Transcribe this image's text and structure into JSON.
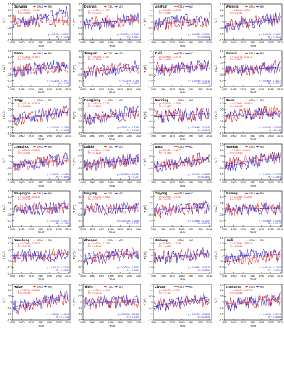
{
  "figure": {
    "legend_labels": [
      "CRU",
      "MO"
    ],
    "colors": {
      "cru": "#e8261e",
      "mo": "#2b2bd8",
      "axis": "#000000"
    },
    "x_ticks": [
      "1950",
      "1960",
      "1970",
      "1980",
      "1990",
      "2000",
      "2010"
    ],
    "y_ticks": [
      "1.5",
      "1.0",
      "0.5",
      "0",
      "-0.5",
      "-1.0",
      "-1.5"
    ],
    "xlabel": "Year",
    "ylabel": "T (C°)"
  },
  "chart_data": [
    {
      "type": "line",
      "station": "Guiyang",
      "eq_cru": "y = 0.0015x + 0.0481",
      "r2_cru": "R² = 0.0025",
      "eq_mo": "y = 0.018x - 0.2227",
      "r2_mo": "R² = 0.1226",
      "xlim": [
        1950,
        2012
      ],
      "ylim": [
        -1.5,
        1.5
      ],
      "series": [
        {
          "name": "CRU",
          "trend": [
            1951,
            0.05,
            2010,
            0.14
          ]
        },
        {
          "name": "MO",
          "trend": [
            1951,
            -0.22,
            2010,
            0.84
          ]
        }
      ]
    },
    {
      "type": "line",
      "station": "Dushan",
      "eq_cru": "y = 0.0044x - 0.1077",
      "r2_cru": "R² = 0.0221",
      "eq_mo": "y = 0.0089x - 0.2516",
      "r2_mo": "R² = 0.0572",
      "xlim": [
        1950,
        2012
      ],
      "ylim": [
        -1.5,
        1.5
      ],
      "series": [
        {
          "name": "CRU",
          "trend": [
            1951,
            -0.1,
            2010,
            0.15
          ]
        },
        {
          "name": "MO",
          "trend": [
            1951,
            -0.24,
            2010,
            0.28
          ]
        }
      ]
    },
    {
      "type": "line",
      "station": "Anshun",
      "eq_cru": "y = 0.0066x - 0.2604",
      "r2_cru": "R² = 0.045",
      "eq_mo": "y = 0.0083x - 0.1651",
      "r2_mo": "R² = 0.0469",
      "xlim": [
        1950,
        2012
      ],
      "ylim": [
        -1.5,
        1.5
      ],
      "series": [
        {
          "name": "CRU",
          "trend": [
            1951,
            -0.25,
            2010,
            0.13
          ]
        },
        {
          "name": "MO",
          "trend": [
            1951,
            -0.16,
            2010,
            0.33
          ]
        }
      ]
    },
    {
      "type": "line",
      "station": "Weining",
      "eq_cru": "y = 0.0084x - 0.263",
      "r2_cru": "R² = 0.1101",
      "eq_mo": "y = 0.0111x - 0.3667",
      "r2_mo": "R² = 0.1572",
      "xlim": [
        1950,
        2012
      ],
      "ylim": [
        -1.5,
        1.5
      ],
      "series": [
        {
          "name": "CRU",
          "trend": [
            1951,
            -0.25,
            2010,
            0.24
          ]
        },
        {
          "name": "MO",
          "trend": [
            1951,
            -0.36,
            2010,
            0.29
          ]
        }
      ]
    },
    {
      "type": "line",
      "station": "Sinan",
      "eq_cru": "y = 0.0062x - 0.1997",
      "r2_cru": "R² = 0.0413",
      "eq_mo": "y = 0.0083x - 0.1997",
      "r2_mo": "R² = 0.08",
      "xlim": [
        1950,
        2012
      ],
      "ylim": [
        -1.5,
        1.5
      ],
      "series": [
        {
          "name": "CRU",
          "trend": [
            1951,
            -0.19,
            2010,
            0.17
          ]
        },
        {
          "name": "MO",
          "trend": [
            1951,
            -0.19,
            2010,
            0.3
          ]
        }
      ]
    },
    {
      "type": "line",
      "station": "Tongren",
      "eq_cru": "y = 0.0059x - 0.262",
      "r2_cru": "R² = 0.1465",
      "eq_mo": "y = 0.0097x - 0.326",
      "r2_mo": "R² = 0.0662",
      "xlim": [
        1950,
        2012
      ],
      "ylim": [
        -1.5,
        1.5
      ],
      "series": [
        {
          "name": "CRU",
          "trend": [
            1951,
            -0.26,
            2010,
            0.09
          ]
        },
        {
          "name": "MO",
          "trend": [
            1951,
            -0.32,
            2010,
            0.25
          ]
        }
      ]
    },
    {
      "type": "line",
      "station": "Kaili",
      "eq_cru": "y = 0.0059x - 0.0379",
      "r2_cru": "R² = 0.0943",
      "eq_mo": "y = 0.0078x - 0.2118",
      "r2_mo": "R² = 0.0447",
      "xlim": [
        1950,
        2012
      ],
      "ylim": [
        -1.5,
        1.5
      ],
      "series": [
        {
          "name": "CRU",
          "trend": [
            1951,
            -0.03,
            2010,
            0.31
          ]
        },
        {
          "name": "MO",
          "trend": [
            1951,
            -0.2,
            2010,
            0.25
          ]
        }
      ]
    },
    {
      "type": "line",
      "station": "Sansui",
      "eq_cru": "y = 0.0047x - 0.1471",
      "r2_cru": "R² = 0.0601",
      "eq_mo": "y = 0.0066x - 0.2657",
      "r2_mo": "R² = 0.0531",
      "xlim": [
        1950,
        2012
      ],
      "ylim": [
        -1.5,
        1.5
      ],
      "series": [
        {
          "name": "CRU",
          "trend": [
            1951,
            -0.14,
            2010,
            0.13
          ]
        },
        {
          "name": "MO",
          "trend": [
            1951,
            -0.26,
            2010,
            0.13
          ]
        }
      ]
    },
    {
      "type": "line",
      "station": "Xingyi",
      "eq_cru": "y = 0.0121x - 0.4318",
      "r2_cru": "R² = 0.1826",
      "eq_mo": "y = 0.0102x - 0.3309",
      "r2_mo": "R² = 0.1658",
      "xlim": [
        1950,
        2012
      ],
      "ylim": [
        -1.5,
        1.5
      ],
      "series": [
        {
          "name": "CRU",
          "trend": [
            1951,
            -0.42,
            2010,
            0.29
          ]
        },
        {
          "name": "MO",
          "trend": [
            1951,
            -0.32,
            2010,
            0.28
          ]
        }
      ]
    },
    {
      "type": "line",
      "station": "Rongjiang",
      "eq_cru": "y = 0.0062x - 0.2742",
      "r2_cru": "R² = 0.1652",
      "eq_mo": "y = 0.0114x - 0.3298",
      "r2_mo": "R² = 0.0915",
      "xlim": [
        1950,
        2012
      ],
      "ylim": [
        -1.5,
        1.5
      ],
      "series": [
        {
          "name": "CRU",
          "trend": [
            1951,
            -0.27,
            2010,
            0.09
          ]
        },
        {
          "name": "MO",
          "trend": [
            1951,
            -0.32,
            2010,
            0.35
          ]
        }
      ]
    },
    {
      "type": "line",
      "station": "Nanning",
      "eq_cru": "y = 0.0029x - 0.0963",
      "r2_cru": "R² = 0.0157",
      "eq_mo": "y = 0.0045x - 0.1048",
      "r2_mo": "R² = 0.0174",
      "xlim": [
        1950,
        2012
      ],
      "ylim": [
        -1.5,
        1.5
      ],
      "series": [
        {
          "name": "CRU",
          "trend": [
            1951,
            -0.09,
            2010,
            0.08
          ]
        },
        {
          "name": "MO",
          "trend": [
            1951,
            -0.1,
            2010,
            0.16
          ]
        }
      ]
    },
    {
      "type": "line",
      "station": "Baise",
      "eq_cru": "y = 0.0066x - 0.0963",
      "r2_cru": "R² = 0.1645",
      "eq_mo": "y = 0.0023x - 0.0009",
      "r2_mo": "R² = 8E-06",
      "xlim": [
        1950,
        2012
      ],
      "ylim": [
        -1.5,
        1.5
      ],
      "series": [
        {
          "name": "CRU",
          "trend": [
            1951,
            -0.09,
            2010,
            0.3
          ]
        },
        {
          "name": "MO",
          "trend": [
            1951,
            0.0,
            2010,
            0.13
          ]
        }
      ]
    },
    {
      "type": "line",
      "station": "Longzhou",
      "eq_cru": "y = 0.0063x - 0.2476",
      "r2_cru": "R² = 0.0261",
      "eq_mo": "y = 0.0115x - 0.3486",
      "r2_mo": "R² = 0.1869",
      "xlim": [
        1950,
        2012
      ],
      "ylim": [
        -1.5,
        1.5
      ],
      "series": [
        {
          "name": "CRU",
          "trend": [
            1951,
            -0.24,
            2010,
            0.13
          ]
        },
        {
          "name": "MO",
          "trend": [
            1951,
            -0.34,
            2010,
            0.33
          ]
        }
      ]
    },
    {
      "type": "line",
      "station": "Laibin",
      "eq_cru": "y = 0.0061x - 0.2058",
      "r2_cru": "R² = 0.1126",
      "eq_mo": "y = 0.0123x - 0.3466",
      "r2_mo": "R² = 0.217",
      "xlim": [
        1950,
        2012
      ],
      "ylim": [
        -1.5,
        1.5
      ],
      "series": [
        {
          "name": "CRU",
          "trend": [
            1951,
            -0.2,
            2010,
            0.16
          ]
        },
        {
          "name": "MO",
          "trend": [
            1951,
            -0.34,
            2010,
            0.38
          ]
        }
      ]
    },
    {
      "type": "line",
      "station": "Napo",
      "eq_cru": "y = 0.0124x - 0.4077",
      "r2_cru": "R² = 0.1883",
      "eq_mo": "y = 0.0137x - 0.4634",
      "r2_mo": "R² = 0.2366",
      "xlim": [
        1950,
        2012
      ],
      "ylim": [
        -1.5,
        1.5
      ],
      "series": [
        {
          "name": "CRU",
          "trend": [
            1951,
            -0.4,
            2010,
            0.33
          ]
        },
        {
          "name": "MO",
          "trend": [
            1951,
            -0.45,
            2010,
            0.35
          ]
        }
      ]
    },
    {
      "type": "line",
      "station": "Rongan",
      "eq_cru": "y = 0.011x - 0.2111",
      "r2_cru": "R² = 0.0913",
      "eq_mo": "y = 0.0133x - 0.3733",
      "r2_mo": "R² = 0.2563",
      "xlim": [
        1950,
        2012
      ],
      "ylim": [
        -1.5,
        1.5
      ],
      "series": [
        {
          "name": "CRU",
          "trend": [
            1951,
            -0.2,
            2010,
            0.44
          ]
        },
        {
          "name": "MO",
          "trend": [
            1951,
            -0.36,
            2010,
            0.41
          ]
        }
      ]
    },
    {
      "type": "line",
      "station": "Shapingba",
      "eq_cru": "y = 0.0024x - 0.0616",
      "r2_cru": "R² = 0.0138",
      "eq_mo": "y = 0.0076x - 0.2407",
      "r2_mo": "R² = 0.1196",
      "xlim": [
        1950,
        2012
      ],
      "ylim": [
        -1.5,
        1.5
      ],
      "series": [
        {
          "name": "CRU",
          "trend": [
            1951,
            -0.06,
            2010,
            0.08
          ]
        },
        {
          "name": "MO",
          "trend": [
            1951,
            -0.23,
            2010,
            0.21
          ]
        }
      ]
    },
    {
      "type": "line",
      "station": "Neijiang",
      "eq_cru": "y = 0.0025x - 0.0815",
      "r2_cru": "R² = 0.0147",
      "eq_mo": "y = 0.0023x - 0.0638",
      "r2_mo": "R² = 0.0103",
      "xlim": [
        1950,
        2012
      ],
      "ylim": [
        -1.5,
        1.5
      ],
      "series": [
        {
          "name": "CRU",
          "trend": [
            1951,
            -0.08,
            2010,
            0.07
          ]
        },
        {
          "name": "MO",
          "trend": [
            1951,
            -0.06,
            2010,
            0.07
          ]
        }
      ]
    },
    {
      "type": "line",
      "station": "Xuyong",
      "eq_cru": "y = 0.0075x - 0.2747",
      "r2_cru": "R² = 0.0215",
      "eq_mo": "y = 0.0045x - 0.1257",
      "r2_mo": "R² = 0.0225",
      "xlim": [
        1950,
        2012
      ],
      "ylim": [
        -1.5,
        1.5
      ],
      "series": [
        {
          "name": "CRU",
          "trend": [
            1951,
            -0.27,
            2010,
            0.17
          ]
        },
        {
          "name": "MO",
          "trend": [
            1951,
            -0.12,
            2010,
            0.14
          ]
        }
      ]
    },
    {
      "type": "line",
      "station": "Suining",
      "eq_cru": "y = 0.0036x - 0.1063",
      "r2_cru": "R² = 0.025",
      "eq_mo": "y = 0.0008x - 0.0208",
      "r2_mo": "R² = 0.0014",
      "xlim": [
        1950,
        2012
      ],
      "ylim": [
        -1.5,
        1.5
      ],
      "series": [
        {
          "name": "CRU",
          "trend": [
            1951,
            -0.1,
            2010,
            0.11
          ]
        },
        {
          "name": "MO",
          "trend": [
            1951,
            -0.02,
            2010,
            0.03
          ]
        }
      ]
    },
    {
      "type": "line",
      "station": "Nanchong",
      "eq_cru": "y = 0.0056x - 0.1652",
      "r2_cru": "R² = 0.0712",
      "eq_mo": "y = 0.0011x - 0.0345",
      "r2_mo": "R² = 0.0022",
      "xlim": [
        1950,
        2012
      ],
      "ylim": [
        -1.5,
        1.5
      ],
      "series": [
        {
          "name": "CRU",
          "trend": [
            1951,
            -0.16,
            2010,
            0.17
          ]
        },
        {
          "name": "MO",
          "trend": [
            1951,
            -0.03,
            2010,
            0.03
          ]
        }
      ]
    },
    {
      "type": "line",
      "station": "Zhaojue",
      "eq_cru": "y = 0.0105x - 0.3256",
      "r2_cru": "R² = 0.1566",
      "eq_mo": "y = 0.0083x - 0.3083",
      "r2_mo": "R² = 0.0687",
      "xlim": [
        1950,
        2012
      ],
      "ylim": [
        -1.5,
        1.5
      ],
      "series": [
        {
          "name": "CRU",
          "trend": [
            1951,
            -0.32,
            2010,
            0.3
          ]
        },
        {
          "name": "MO",
          "trend": [
            1951,
            -0.3,
            2010,
            0.19
          ]
        }
      ]
    },
    {
      "type": "line",
      "station": "Xichang",
      "eq_cru": "y = 0.0069x - 0.2168",
      "r2_cru": "R² = 0.0852",
      "eq_mo": "y = 0.0081x - 0.2978",
      "r2_mo": "R² = 0.0455",
      "xlim": [
        1950,
        2012
      ],
      "ylim": [
        -1.5,
        1.5
      ],
      "series": [
        {
          "name": "CRU",
          "trend": [
            1951,
            -0.21,
            2010,
            0.19
          ]
        },
        {
          "name": "MO",
          "trend": [
            1951,
            -0.29,
            2010,
            0.19
          ]
        }
      ]
    },
    {
      "type": "line",
      "station": "Huili",
      "eq_cru": "y = 0.0108x - 0.5643",
      "r2_cru": "R² = 0.3611",
      "eq_mo": "y = 0.0041x - 0.1264",
      "r2_mo": "R² = 0.0291",
      "xlim": [
        1950,
        2012
      ],
      "ylim": [
        -1.5,
        1.5
      ],
      "series": [
        {
          "name": "CRU",
          "trend": [
            1951,
            -0.55,
            2010,
            0.09
          ]
        },
        {
          "name": "MO",
          "trend": [
            1951,
            -0.12,
            2010,
            0.12
          ]
        }
      ]
    },
    {
      "type": "line",
      "station": "Huize",
      "eq_cru": "y = 0.0173x - 0.6523",
      "r2_cru": "R² = 0.4784",
      "eq_mo": "y = 0.0168x - 0.4604",
      "r2_mo": "R² = 0.2728",
      "xlim": [
        1950,
        2012
      ],
      "ylim": [
        -1.5,
        1.5
      ],
      "series": [
        {
          "name": "CRU",
          "trend": [
            1951,
            -0.63,
            2010,
            0.39
          ]
        },
        {
          "name": "MO",
          "trend": [
            1951,
            -0.44,
            2010,
            0.55
          ]
        }
      ]
    },
    {
      "type": "line",
      "station": "Yibin",
      "eq_cru": "y = 0.0024x - 0.1143",
      "r2_cru": "R² = 0.0143",
      "eq_mo": "y = 0.0054x - 0.1116",
      "r2_mo": "R² = 0.0375",
      "xlim": [
        1950,
        2012
      ],
      "ylim": [
        -1.5,
        1.5
      ],
      "series": [
        {
          "name": "CRU",
          "trend": [
            1951,
            -0.11,
            2010,
            0.03
          ]
        },
        {
          "name": "MO",
          "trend": [
            1951,
            -0.11,
            2010,
            0.21
          ]
        }
      ]
    },
    {
      "type": "line",
      "station": "Ziyang",
      "eq_cru": "y = 0.0079x - 0.276",
      "r2_cru": "R² = 0.1101",
      "eq_mo": "y = 0.0137x - 0.3854",
      "r2_mo": "R² = 0.2398",
      "xlim": [
        1950,
        2012
      ],
      "ylim": [
        -1.5,
        1.5
      ],
      "series": [
        {
          "name": "CRU",
          "trend": [
            1951,
            -0.27,
            2010,
            0.2
          ]
        },
        {
          "name": "MO",
          "trend": [
            1951,
            -0.38,
            2010,
            0.43
          ]
        }
      ]
    },
    {
      "type": "line",
      "station": "Zhaotong",
      "eq_cru": "y = 0.0066x - 0.1774",
      "r2_cru": "R² = 0.0546",
      "eq_mo": "y = 0.0105x - 0.3294",
      "r2_mo": "R² = 0.0865",
      "xlim": [
        1950,
        2012
      ],
      "ylim": [
        -1.5,
        1.5
      ],
      "series": [
        {
          "name": "CRU",
          "trend": [
            1951,
            -0.17,
            2010,
            0.22
          ]
        },
        {
          "name": "MO",
          "trend": [
            1951,
            -0.32,
            2010,
            0.3
          ]
        }
      ]
    }
  ]
}
